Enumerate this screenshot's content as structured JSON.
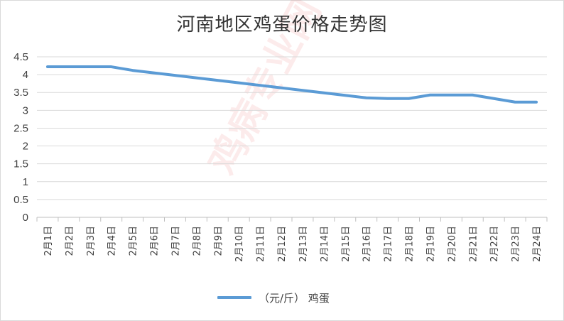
{
  "chart_data": {
    "type": "line",
    "title": "河南地区鸡蛋价格走势图",
    "categories": [
      "2月1日",
      "2月2日",
      "2月3日",
      "2月4日",
      "2月5日",
      "2月6日",
      "2月7日",
      "2月8日",
      "2月9日",
      "2月10日",
      "2月11日",
      "2月12日",
      "2月13日",
      "2月14日",
      "2月15日",
      "2月16日",
      "2月17日",
      "2月18日",
      "2月19日",
      "2月20日",
      "2月21日",
      "2月22日",
      "2月23日",
      "2月24日"
    ],
    "series": [
      {
        "name": "（元/斤） 鸡蛋",
        "values": [
          4.22,
          4.22,
          4.22,
          4.22,
          4.12,
          4.05,
          3.98,
          3.91,
          3.84,
          3.77,
          3.7,
          3.63,
          3.56,
          3.49,
          3.42,
          3.35,
          3.33,
          3.33,
          3.43,
          3.43,
          3.43,
          3.33,
          3.23,
          3.23
        ],
        "color": "#5b9bd5"
      }
    ],
    "yticks": [
      "0",
      "0.5",
      "1",
      "1.5",
      "2",
      "2.5",
      "3",
      "3.5",
      "4",
      "4.5"
    ],
    "ylim": [
      0,
      4.5
    ],
    "grid": true,
    "legend": "bottom",
    "watermark": "鸡病专业网"
  }
}
